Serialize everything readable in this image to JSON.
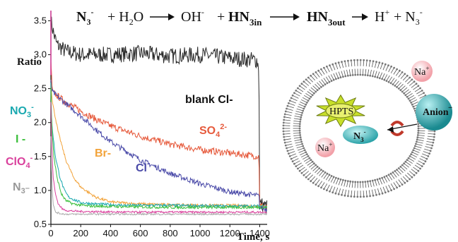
{
  "equation": {
    "r1": "N",
    "r1_sub": "3",
    "r1_sup": "-",
    "plus1": "+ H",
    "h2o_sub": "2",
    "h2o_end": "O",
    "p1": "OH",
    "p1_sup": "-",
    "plus2": "+",
    "p2": "HN",
    "p2_sub": "3in",
    "p3": "HN",
    "p3_sub": "3out",
    "p4": "H",
    "p4_sup": "+",
    "plus3": "+ N",
    "p5_sub": "3",
    "p5_sup": "-"
  },
  "chart_data": {
    "type": "line",
    "ylabel": "Ratio",
    "xlabel": "Time, s",
    "xlim": [
      0,
      1450
    ],
    "ylim": [
      0.5,
      3.65
    ],
    "xticks": [
      0,
      200,
      400,
      600,
      800,
      1000,
      1200,
      1400
    ],
    "yticks": [
      0.5,
      1.0,
      1.5,
      2.0,
      2.5,
      3.0,
      3.5
    ],
    "series": [
      {
        "name": "blank Cl-",
        "color": "#2a2a2a",
        "x": [
          0,
          20,
          40,
          100,
          200,
          400,
          600,
          800,
          1000,
          1200,
          1380,
          1395,
          1400,
          1450
        ],
        "y": [
          3.5,
          3.3,
          3.15,
          3.05,
          3.0,
          3.0,
          3.02,
          2.98,
          3.0,
          2.95,
          2.92,
          2.8,
          0.8,
          0.75
        ],
        "noise": 0.12
      },
      {
        "name": "SO4 2-",
        "color": "#e65a3c",
        "x": [
          0,
          10,
          100,
          200,
          300,
          400,
          600,
          800,
          1000,
          1200,
          1395,
          1400,
          1450
        ],
        "y": [
          2.9,
          2.45,
          2.3,
          2.17,
          2.05,
          1.95,
          1.8,
          1.68,
          1.6,
          1.55,
          1.5,
          0.78,
          0.75
        ],
        "noise": 0.05
      },
      {
        "name": "Cl-",
        "color": "#4a4aa8",
        "x": [
          0,
          10,
          100,
          200,
          300,
          400,
          600,
          800,
          1000,
          1200,
          1395,
          1400,
          1450
        ],
        "y": [
          2.6,
          2.45,
          2.28,
          2.1,
          1.9,
          1.72,
          1.45,
          1.25,
          1.1,
          0.98,
          0.92,
          0.75,
          0.72
        ],
        "noise": 0.04
      },
      {
        "name": "Br-",
        "color": "#f2a33a",
        "x": [
          0,
          10,
          50,
          100,
          150,
          200,
          300,
          400,
          600,
          800,
          1000,
          1200,
          1450
        ],
        "y": [
          2.6,
          2.3,
          1.85,
          1.45,
          1.2,
          1.05,
          0.9,
          0.83,
          0.8,
          0.79,
          0.78,
          0.78,
          0.77
        ],
        "noise": 0.02
      },
      {
        "name": "NO3-",
        "color": "#1aa9b0",
        "x": [
          0,
          5,
          30,
          60,
          90,
          120,
          200,
          300,
          500,
          800,
          1100,
          1450
        ],
        "y": [
          2.6,
          2.0,
          1.5,
          1.2,
          1.0,
          0.9,
          0.82,
          0.8,
          0.78,
          0.78,
          0.77,
          0.77
        ],
        "noise": 0.02
      },
      {
        "name": "I-",
        "color": "#3cbf3c",
        "x": [
          0,
          5,
          20,
          40,
          70,
          100,
          150,
          250,
          500,
          800,
          1100,
          1450
        ],
        "y": [
          2.5,
          2.0,
          1.5,
          1.2,
          0.95,
          0.85,
          0.8,
          0.77,
          0.76,
          0.75,
          0.75,
          0.75
        ],
        "noise": 0.02
      },
      {
        "name": "ClO4-",
        "color": "#d9409c",
        "x": [
          0,
          5,
          15,
          30,
          50,
          80,
          120,
          200,
          500,
          800,
          1100,
          1450
        ],
        "y": [
          2.3,
          1.7,
          1.2,
          0.95,
          0.8,
          0.72,
          0.7,
          0.69,
          0.68,
          0.68,
          0.68,
          0.68
        ],
        "noise": 0.015
      },
      {
        "name": "N3-",
        "color": "#aaaaaa",
        "x": [
          0,
          5,
          15,
          30,
          60,
          100,
          200,
          500,
          800,
          1100,
          1450
        ],
        "y": [
          1.8,
          1.2,
          0.8,
          0.68,
          0.66,
          0.65,
          0.65,
          0.65,
          0.65,
          0.65,
          0.65
        ],
        "noise": 0.012
      }
    ],
    "annotations": {
      "blank": "blank Cl-",
      "so4": "SO",
      "so4_sub": "4",
      "so4_sup": "2-",
      "cl": "Cl",
      "cl_sup": "-",
      "br": "Br-",
      "no3": "NO",
      "no3_sub": "3",
      "no3_sup": "-",
      "i": "I -",
      "clo4": "ClO",
      "clo4_sub": "4",
      "clo4_sup": "-",
      "n3": "N",
      "n3_sub": "3",
      "n3_sup": "–"
    }
  },
  "schematic": {
    "anion": "Anion",
    "anion_sup": "–",
    "hpts": "HPTS",
    "na_outside": "Na",
    "na_outside_sup": "+",
    "na_inside": "Na",
    "na_inside_sup": "+",
    "n3_inside": "N",
    "n3_inside_sub": "3",
    "n3_inside_sup": "-"
  }
}
